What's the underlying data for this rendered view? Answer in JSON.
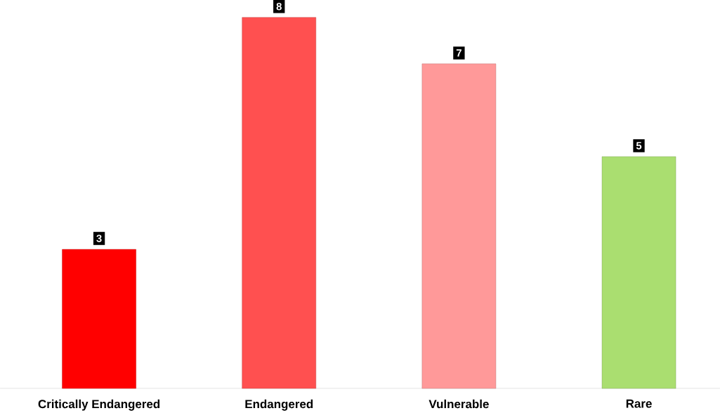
{
  "chart_data": {
    "type": "bar",
    "categories": [
      "Critically Endangered",
      "Endangered",
      "Vulnerable",
      "Rare"
    ],
    "values": [
      3,
      8,
      7,
      5
    ],
    "colors": [
      "#ff0000",
      "#ff5050",
      "#ff9999",
      "#aade70"
    ],
    "data_labels": true
  }
}
